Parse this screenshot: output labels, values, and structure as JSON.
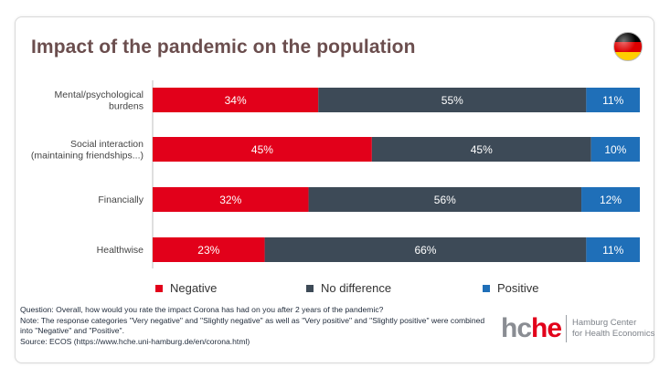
{
  "title": "Impact of the pandemic on the population",
  "flag_colors": [
    "#000000",
    "#dd0000",
    "#ffce00"
  ],
  "chart_data": {
    "type": "bar",
    "orientation": "horizontal",
    "stacked": true,
    "percent_stacked": true,
    "categories": [
      [
        "Mental/psychological",
        "burdens"
      ],
      [
        "Social interaction",
        "(maintaining friendships...)"
      ],
      [
        "Financially"
      ],
      [
        "Healthwise"
      ]
    ],
    "series": [
      {
        "name": "Negative",
        "color": "#e2001a",
        "values": [
          34,
          45,
          32,
          23
        ]
      },
      {
        "name": "No difference",
        "color": "#3d4a57",
        "values": [
          55,
          45,
          56,
          66
        ]
      },
      {
        "name": "Positive",
        "color": "#1f6fb8",
        "values": [
          11,
          10,
          12,
          11
        ]
      }
    ],
    "value_suffix": "%",
    "xlim": [
      0,
      100
    ],
    "legend_position": "bottom",
    "grid": false
  },
  "notes": {
    "question": "Question: Overall, how would you rate the impact Corona has had on you after 2 years of the pandemic?",
    "note": "Note: The response categories \"Very negative\" and \"Slightly negative\" as well as \"Very positive\" and \"Slightly positive\" were combined into \"Negative\" and \"Positive\".",
    "source": "Source: ECOS (https://www.hche.uni-hamburg.de/en/corona.html)"
  },
  "logo": {
    "mark_part1": "hc",
    "mark_part2": "he",
    "line1": "Hamburg Center",
    "line2": "for Health Economics"
  }
}
